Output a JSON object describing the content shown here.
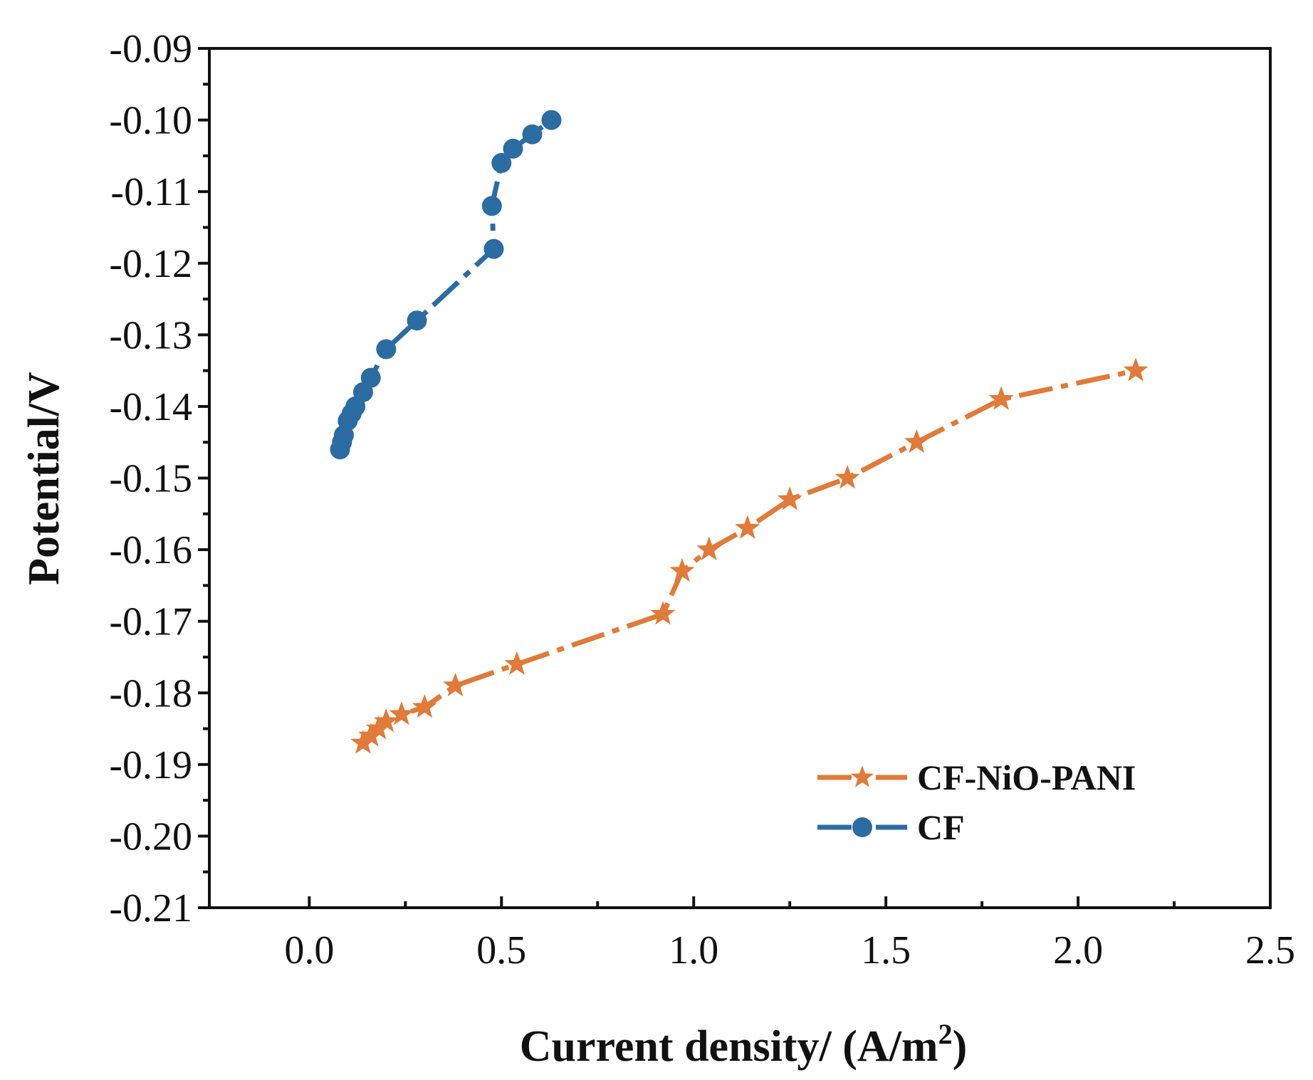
{
  "chart_data": {
    "type": "line",
    "title": "",
    "xlabel": "Current density/ (A/m",
    "xlabel_superscript": "2",
    "xlabel_suffix": ")",
    "ylabel": "Potential/V",
    "xlim": [
      -0.26,
      2.5
    ],
    "ylim": [
      -0.21,
      -0.09
    ],
    "x_ticks": [
      "0.0",
      "0.5",
      "1.0",
      "1.5",
      "2.0",
      "2.5"
    ],
    "x_tick_values": [
      0.0,
      0.5,
      1.0,
      1.5,
      2.0,
      2.5
    ],
    "y_ticks": [
      "-0.09",
      "-0.10",
      "-0.11",
      "-0.12",
      "-0.13",
      "-0.14",
      "-0.15",
      "-0.16",
      "-0.17",
      "-0.18",
      "-0.19",
      "-0.20",
      "-0.21"
    ],
    "y_tick_values": [
      -0.09,
      -0.1,
      -0.11,
      -0.12,
      -0.13,
      -0.14,
      -0.15,
      -0.16,
      -0.17,
      -0.18,
      -0.19,
      -0.2,
      -0.21
    ],
    "grid": false,
    "legend_position": "bottom-right",
    "series": [
      {
        "name": "CF-NiO-PANI",
        "color": "#E07B39",
        "marker": "star",
        "x": [
          0.14,
          0.16,
          0.18,
          0.2,
          0.24,
          0.3,
          0.38,
          0.54,
          0.92,
          0.97,
          1.04,
          1.14,
          1.25,
          1.4,
          1.58,
          1.8,
          2.15
        ],
        "y": [
          -0.187,
          -0.186,
          -0.185,
          -0.184,
          -0.183,
          -0.182,
          -0.179,
          -0.176,
          -0.169,
          -0.163,
          -0.16,
          -0.157,
          -0.153,
          -0.15,
          -0.145,
          -0.139,
          -0.135
        ]
      },
      {
        "name": "CF",
        "color": "#2B6CA3",
        "marker": "circle",
        "x": [
          0.08,
          0.085,
          0.09,
          0.1,
          0.11,
          0.12,
          0.14,
          0.16,
          0.2,
          0.28,
          0.48,
          0.475,
          0.5,
          0.53,
          0.58,
          0.63
        ],
        "y": [
          -0.146,
          -0.145,
          -0.144,
          -0.142,
          -0.141,
          -0.14,
          -0.138,
          -0.136,
          -0.132,
          -0.128,
          -0.118,
          -0.112,
          -0.106,
          -0.104,
          -0.102,
          -0.1
        ]
      }
    ]
  }
}
